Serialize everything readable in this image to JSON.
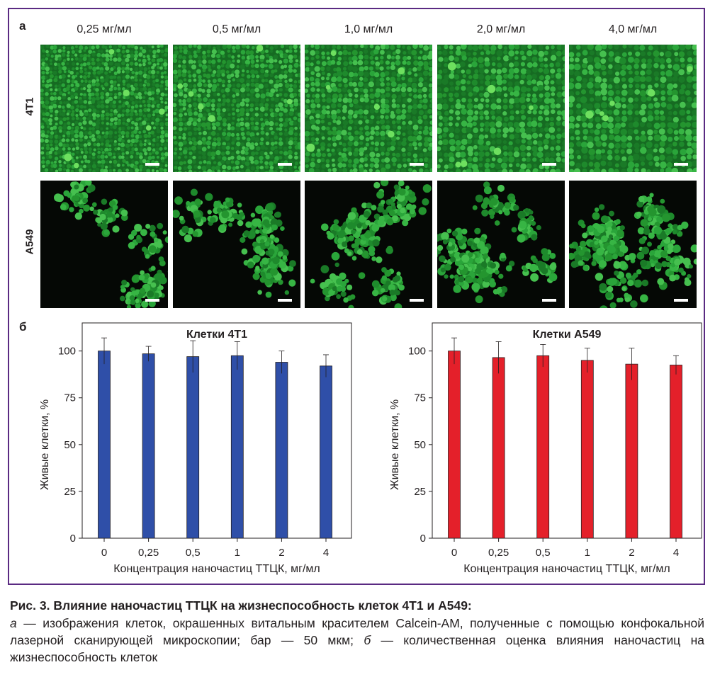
{
  "figure": {
    "panel_a_label": "а",
    "panel_b_label": "б",
    "concentrations": [
      "0,25 мг/мл",
      "0,5 мг/мл",
      "1,0 мг/мл",
      "2,0 мг/мл",
      "4,0 мг/мл"
    ],
    "rows": [
      {
        "label": "4T1",
        "style": "dense"
      },
      {
        "label": "A549",
        "style": "clusters"
      }
    ],
    "colors": {
      "frame": "#5a2a82",
      "cell_green": "#2fae3a",
      "bar_blue": "#2f4fa8",
      "bar_red": "#e4202a"
    }
  },
  "chart_data": [
    {
      "type": "bar",
      "title": "Клетки 4T1",
      "xlabel": "Концентрация наночастиц ТТЦК, мг/мл",
      "ylabel": "Живые клетки, %",
      "categories": [
        "0",
        "0,25",
        "0,5",
        "1",
        "2",
        "4"
      ],
      "values": [
        100,
        98.5,
        97,
        97.5,
        94,
        92
      ],
      "errors": [
        7,
        4,
        8.5,
        7.5,
        6,
        6
      ],
      "ylim": [
        0,
        115
      ],
      "yticks": [
        "0",
        "25",
        "50",
        "75",
        "100"
      ],
      "color": "#2f4fa8"
    },
    {
      "type": "bar",
      "title": "Клетки A549",
      "xlabel": "Концентрация наночастиц ТТЦК, мг/мл",
      "ylabel": "Живые клетки, %",
      "categories": [
        "0",
        "0,25",
        "0,5",
        "1",
        "2",
        "4"
      ],
      "values": [
        100,
        96.5,
        97.5,
        95,
        93,
        92.5
      ],
      "errors": [
        7,
        8.5,
        6,
        6.5,
        8.5,
        5
      ],
      "ylim": [
        0,
        115
      ],
      "yticks": [
        "0",
        "25",
        "50",
        "75",
        "100"
      ],
      "color": "#e4202a"
    }
  ],
  "caption": {
    "title": "Рис. 3. Влияние наночастиц ТТЦК на жизнеспособность клеток 4T1 и A549:",
    "a_letter": "а",
    "a_text": " — изображения клеток, окрашенных витальным красителем Calcein-AM, полученные с помощью конфокальной лазерной сканирующей микроскопии; бар — 50 мкм; ",
    "b_letter": "б",
    "b_text": " — количественная оценка влияния наночастиц на жизнеспособность клеток"
  }
}
